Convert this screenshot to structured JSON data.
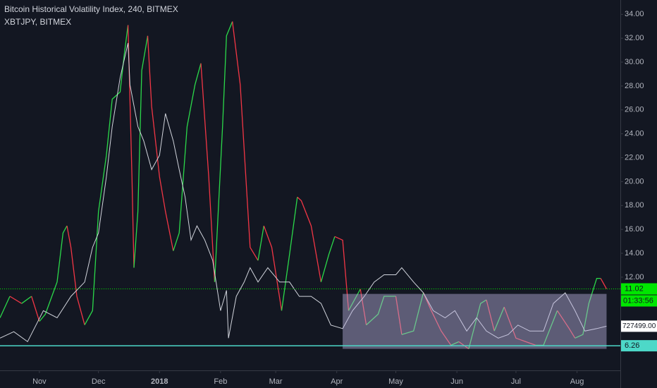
{
  "chart_data": {
    "type": "line",
    "xlim": [
      0,
      315
    ],
    "xticks": [
      {
        "value": 20,
        "label": "Nov"
      },
      {
        "value": 50,
        "label": "Dec"
      },
      {
        "value": 81,
        "label": "2018"
      },
      {
        "value": 112,
        "label": "Feb"
      },
      {
        "value": 140,
        "label": "Mar"
      },
      {
        "value": 171,
        "label": "Apr"
      },
      {
        "value": 201,
        "label": "May"
      },
      {
        "value": 232,
        "label": "Jun"
      },
      {
        "value": 262,
        "label": "Jul"
      },
      {
        "value": 293,
        "label": "Aug"
      }
    ],
    "ylim": [
      4.2,
      35.2
    ],
    "yticks": [
      {
        "value": 12,
        "label": "12.00"
      },
      {
        "value": 14,
        "label": "14.00"
      },
      {
        "value": 16,
        "label": "16.00"
      },
      {
        "value": 18,
        "label": "18.00"
      },
      {
        "value": 20,
        "label": "20.00"
      },
      {
        "value": 22,
        "label": "22.00"
      },
      {
        "value": 24,
        "label": "24.00"
      },
      {
        "value": 26,
        "label": "26.00"
      },
      {
        "value": 28,
        "label": "28.00"
      },
      {
        "value": 30,
        "label": "30.00"
      },
      {
        "value": 32,
        "label": "32.00"
      },
      {
        "value": 34,
        "label": "34.00"
      }
    ],
    "y2lim": [
      515000,
      2297000
    ],
    "grid": false,
    "series": [
      {
        "name": "Bitcoin Historical Volatility Index, 240, BITMEX",
        "up_color": "#2bd94a",
        "down_color": "#f23645",
        "x": [
          0,
          5,
          11,
          16,
          20,
          23,
          29,
          32,
          34,
          36,
          39,
          43,
          47,
          50,
          54,
          57,
          61,
          63,
          65,
          67,
          68,
          70,
          72,
          75,
          77,
          81,
          84,
          88,
          91,
          95,
          99,
          102,
          106,
          109,
          113,
          115,
          118,
          122,
          127,
          131,
          134,
          138,
          143,
          147,
          151,
          153,
          158,
          163,
          167,
          170,
          174,
          177,
          183,
          186,
          192,
          195,
          201,
          204,
          210,
          215,
          219,
          224,
          229,
          233,
          238,
          244,
          247,
          251,
          256,
          262,
          267,
          272,
          276,
          283,
          289,
          292,
          296,
          299,
          303,
          305,
          308
        ],
        "values": [
          8.6,
          10.4,
          9.8,
          10.4,
          8.3,
          8.9,
          11.6,
          15.7,
          16.3,
          14.5,
          10.4,
          8.0,
          9.2,
          17.5,
          22.2,
          26.9,
          27.5,
          30.5,
          33.1,
          20.4,
          12.8,
          17.5,
          29.3,
          32.2,
          26.3,
          20.4,
          17.5,
          14.2,
          15.7,
          24.6,
          28.1,
          29.9,
          20.4,
          11.6,
          24.6,
          32.2,
          33.4,
          28.1,
          14.5,
          13.4,
          16.3,
          14.5,
          9.2,
          13.9,
          18.7,
          18.4,
          16.3,
          11.6,
          13.9,
          15.4,
          15.1,
          9.2,
          11.0,
          8.0,
          8.9,
          10.4,
          10.4,
          7.2,
          7.5,
          10.7,
          9.2,
          7.5,
          6.3,
          6.6,
          6.0,
          9.8,
          10.1,
          7.5,
          9.5,
          6.9,
          6.6,
          6.3,
          6.3,
          9.2,
          7.7,
          6.9,
          7.2,
          9.8,
          11.9,
          11.9,
          11.02
        ],
        "last_color": "#00e600",
        "countdown": "01:33:56"
      },
      {
        "name": "XBTJPY, BITMEX",
        "color": "#d1d4dc",
        "axis": "y2",
        "x": [
          0,
          7,
          14,
          22,
          29,
          36,
          43,
          47,
          50,
          54,
          57,
          61,
          65,
          66,
          70,
          73,
          77,
          81,
          84,
          88,
          91,
          94,
          97,
          100,
          104,
          108,
          112,
          115,
          116,
          120,
          124,
          127,
          131,
          136,
          142,
          147,
          152,
          158,
          163,
          168,
          174,
          179,
          185,
          190,
          195,
          201,
          204,
          210,
          215,
          220,
          226,
          231,
          237,
          242,
          247,
          253,
          258,
          263,
          269,
          276,
          281,
          287,
          292,
          297,
          303,
          308
        ],
        "values": [
          670000,
          701000,
          653000,
          802000,
          768000,
          871000,
          940000,
          1107000,
          1176000,
          1446000,
          1688000,
          1923000,
          2090000,
          1889000,
          1688000,
          1619000,
          1481000,
          1550000,
          1751000,
          1619000,
          1481000,
          1349000,
          1142000,
          1210000,
          1142000,
          1044000,
          802000,
          900000,
          670000,
          871000,
          940000,
          1009000,
          940000,
          1009000,
          940000,
          940000,
          871000,
          871000,
          837000,
          733000,
          716000,
          802000,
          871000,
          940000,
          975000,
          975000,
          1009000,
          940000,
          888000,
          802000,
          768000,
          802000,
          704000,
          768000,
          704000,
          670000,
          687000,
          733000,
          704000,
          704000,
          837000,
          888000,
          802000,
          704000,
          716000,
          727499
        ],
        "last_label": "727499.00"
      }
    ],
    "hline": {
      "value": 6.26,
      "color": "#4dd8c8"
    },
    "box": {
      "x": [
        174,
        308
      ],
      "y": [
        6.0,
        10.6
      ],
      "color": "#b7b2dd"
    }
  }
}
